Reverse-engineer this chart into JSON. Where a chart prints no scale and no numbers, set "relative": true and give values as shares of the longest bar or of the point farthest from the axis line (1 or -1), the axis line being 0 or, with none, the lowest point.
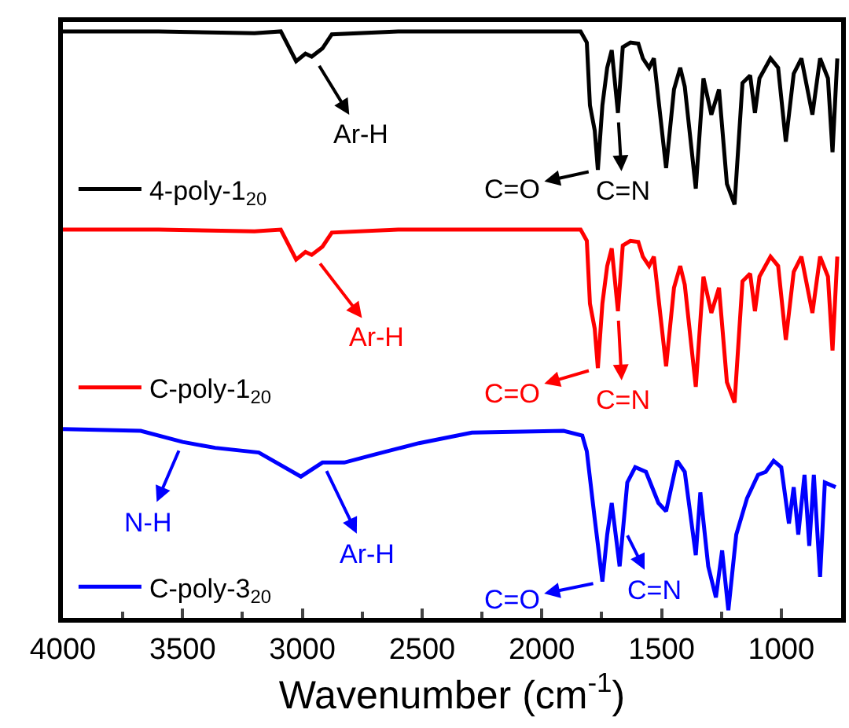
{
  "chart_data": {
    "type": "line",
    "relative": true,
    "xlabel": "Wavenumber (cm$^{-1}$)",
    "xlim": [
      4000,
      750
    ],
    "xticks": [
      4000,
      {
        "value": 3750,
        "label": null
      },
      3500,
      {
        "value": 3250,
        "label": null
      },
      3000,
      {
        "value": 2750,
        "label": null
      },
      2500,
      {
        "value": 2250,
        "label": null
      },
      2000,
      {
        "value": 1750,
        "label": null
      },
      1500,
      {
        "value": 1250,
        "label": null
      },
      1000,
      {
        "value": 750,
        "label": null
      }
    ],
    "tick_labels": "x",
    "grid": false,
    "legend": "left",
    "line_style": "solid",
    "marker": "none",
    "series": [
      {
        "name": "4-poly-1$_{20}$",
        "color": "#000000",
        "x": [
          4000,
          3600,
          3200,
          3090,
          3026,
          2987,
          2961,
          2916,
          2877,
          2600,
          2200,
          1900,
          1838,
          1812,
          1799,
          1779,
          1766,
          1747,
          1727,
          1708,
          1682,
          1662,
          1630,
          1597,
          1578,
          1552,
          1532,
          1481,
          1448,
          1422,
          1403,
          1357,
          1325,
          1292,
          1260,
          1227,
          1195,
          1162,
          1130,
          1110,
          1091,
          1045,
          1013,
          981,
          948,
          916,
          870,
          838,
          805,
          786,
          766
        ],
        "values": [
          1.0,
          1.0,
          0.997,
          1.0,
          0.949,
          0.962,
          0.957,
          0.971,
          0.995,
          1.0,
          1.0,
          1.0,
          1.0,
          0.981,
          0.874,
          0.831,
          0.764,
          0.874,
          0.938,
          0.968,
          0.861,
          0.973,
          0.981,
          0.979,
          0.954,
          0.938,
          0.954,
          0.767,
          0.901,
          0.938,
          0.906,
          0.732,
          0.92,
          0.858,
          0.901,
          0.74,
          0.705,
          0.912,
          0.925,
          0.861,
          0.92,
          0.954,
          0.938,
          0.812,
          0.928,
          0.954,
          0.858,
          0.954,
          0.92,
          0.794,
          0.954
        ]
      },
      {
        "name": "C-poly-1$_{20}$",
        "color": "#ff0000",
        "x": [
          4000,
          3600,
          3200,
          3090,
          3026,
          2987,
          2961,
          2916,
          2877,
          2600,
          2200,
          1900,
          1838,
          1812,
          1799,
          1779,
          1766,
          1747,
          1727,
          1708,
          1682,
          1662,
          1630,
          1597,
          1578,
          1552,
          1532,
          1481,
          1448,
          1422,
          1403,
          1357,
          1325,
          1292,
          1260,
          1227,
          1195,
          1162,
          1130,
          1110,
          1091,
          1045,
          1013,
          981,
          948,
          916,
          870,
          838,
          805,
          786,
          766
        ],
        "values": [
          0.662,
          0.662,
          0.659,
          0.662,
          0.611,
          0.624,
          0.619,
          0.633,
          0.657,
          0.662,
          0.662,
          0.662,
          0.662,
          0.643,
          0.536,
          0.493,
          0.426,
          0.536,
          0.6,
          0.63,
          0.523,
          0.635,
          0.643,
          0.641,
          0.616,
          0.6,
          0.616,
          0.429,
          0.563,
          0.6,
          0.568,
          0.394,
          0.582,
          0.52,
          0.563,
          0.402,
          0.367,
          0.574,
          0.587,
          0.523,
          0.582,
          0.616,
          0.6,
          0.474,
          0.59,
          0.616,
          0.52,
          0.616,
          0.582,
          0.456,
          0.616
        ]
      },
      {
        "name": "C-poly-3$_{20}$",
        "color": "#0000ff",
        "x": [
          4000,
          3675,
          3500,
          3364,
          3182,
          3006,
          2916,
          2825,
          2695,
          2513,
          2292,
          1909,
          1831,
          1812,
          1779,
          1747,
          1727,
          1708,
          1675,
          1643,
          1610,
          1565,
          1513,
          1481,
          1435,
          1403,
          1357,
          1338,
          1305,
          1273,
          1247,
          1221,
          1188,
          1143,
          1097,
          1065,
          1032,
          1000,
          968,
          948,
          929,
          903,
          883,
          864,
          838,
          818,
          773
        ],
        "values": [
          0.322,
          0.319,
          0.3,
          0.29,
          0.282,
          0.241,
          0.265,
          0.265,
          0.279,
          0.298,
          0.316,
          0.319,
          0.311,
          0.284,
          0.169,
          0.062,
          0.142,
          0.196,
          0.088,
          0.231,
          0.257,
          0.249,
          0.196,
          0.182,
          0.268,
          0.249,
          0.107,
          0.214,
          0.088,
          0.035,
          0.115,
          0.013,
          0.142,
          0.204,
          0.244,
          0.249,
          0.268,
          0.257,
          0.161,
          0.223,
          0.142,
          0.244,
          0.123,
          0.244,
          0.07,
          0.231,
          0.223
        ]
      }
    ],
    "annotations": [
      {
        "text": "Ar-H",
        "x": 2950,
        "y": 0.955
      },
      {
        "text": "C=O",
        "x": 1766,
        "y": 0.764
      },
      {
        "text": "C=N",
        "x": 1682,
        "y": 0.861
      },
      {
        "text": "Ar-H",
        "x": 2950,
        "y": 0.617
      },
      {
        "text": "C=O",
        "x": 1766,
        "y": 0.426
      },
      {
        "text": "C=N",
        "x": 1682,
        "y": 0.523
      },
      {
        "text": "N-H",
        "x": 3500,
        "y": 0.3
      },
      {
        "text": "Ar-H",
        "x": 2916,
        "y": 0.265
      },
      {
        "text": "C=O",
        "x": 1747,
        "y": 0.062
      },
      {
        "text": "C=N",
        "x": 1660,
        "y": 0.155
      }
    ]
  }
}
